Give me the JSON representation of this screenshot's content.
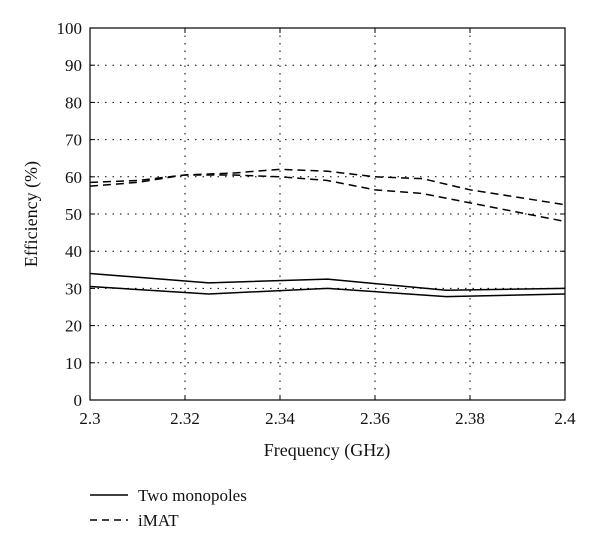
{
  "chart_data": {
    "type": "line",
    "title": "",
    "xlabel": "Frequency (GHz)",
    "ylabel": "Efficiency (%)",
    "xlim": [
      2.3,
      2.4
    ],
    "ylim": [
      0,
      100
    ],
    "x_ticks": [
      "2.3",
      "2.32",
      "2.34",
      "2.36",
      "2.38",
      "2.4"
    ],
    "y_ticks": [
      "0",
      "10",
      "20",
      "30",
      "40",
      "50",
      "60",
      "70",
      "80",
      "90",
      "100"
    ],
    "grid": true,
    "legend_position": "bottom-left, below plot",
    "series": [
      {
        "name": "Two monopoles",
        "style": "solid",
        "color": "#000000",
        "x": [
          2.3,
          2.325,
          2.35,
          2.375,
          2.4
        ],
        "y": [
          34.0,
          31.5,
          32.5,
          29.5,
          30.0
        ]
      },
      {
        "name": "Two monopoles",
        "style": "solid",
        "color": "#000000",
        "x": [
          2.3,
          2.325,
          2.35,
          2.375,
          2.4
        ],
        "y": [
          30.5,
          28.5,
          30.0,
          27.8,
          28.5
        ]
      },
      {
        "name": "iMAT",
        "style": "dashed",
        "color": "#000000",
        "x": [
          2.3,
          2.31,
          2.32,
          2.33,
          2.34,
          2.35,
          2.36,
          2.37,
          2.38,
          2.39,
          2.4
        ],
        "y": [
          58.5,
          59.0,
          60.5,
          61.0,
          62.0,
          61.5,
          60.0,
          59.5,
          56.5,
          54.5,
          52.5
        ]
      },
      {
        "name": "iMAT",
        "style": "dashed",
        "color": "#000000",
        "x": [
          2.3,
          2.31,
          2.32,
          2.33,
          2.34,
          2.35,
          2.36,
          2.37,
          2.38,
          2.39,
          2.4
        ],
        "y": [
          57.5,
          58.5,
          60.5,
          60.5,
          60.0,
          59.0,
          56.5,
          55.5,
          53.0,
          50.5,
          48.0
        ]
      }
    ],
    "legend": [
      {
        "label": "Two monopoles",
        "style": "solid"
      },
      {
        "label": "iMAT",
        "style": "dashed"
      }
    ]
  }
}
